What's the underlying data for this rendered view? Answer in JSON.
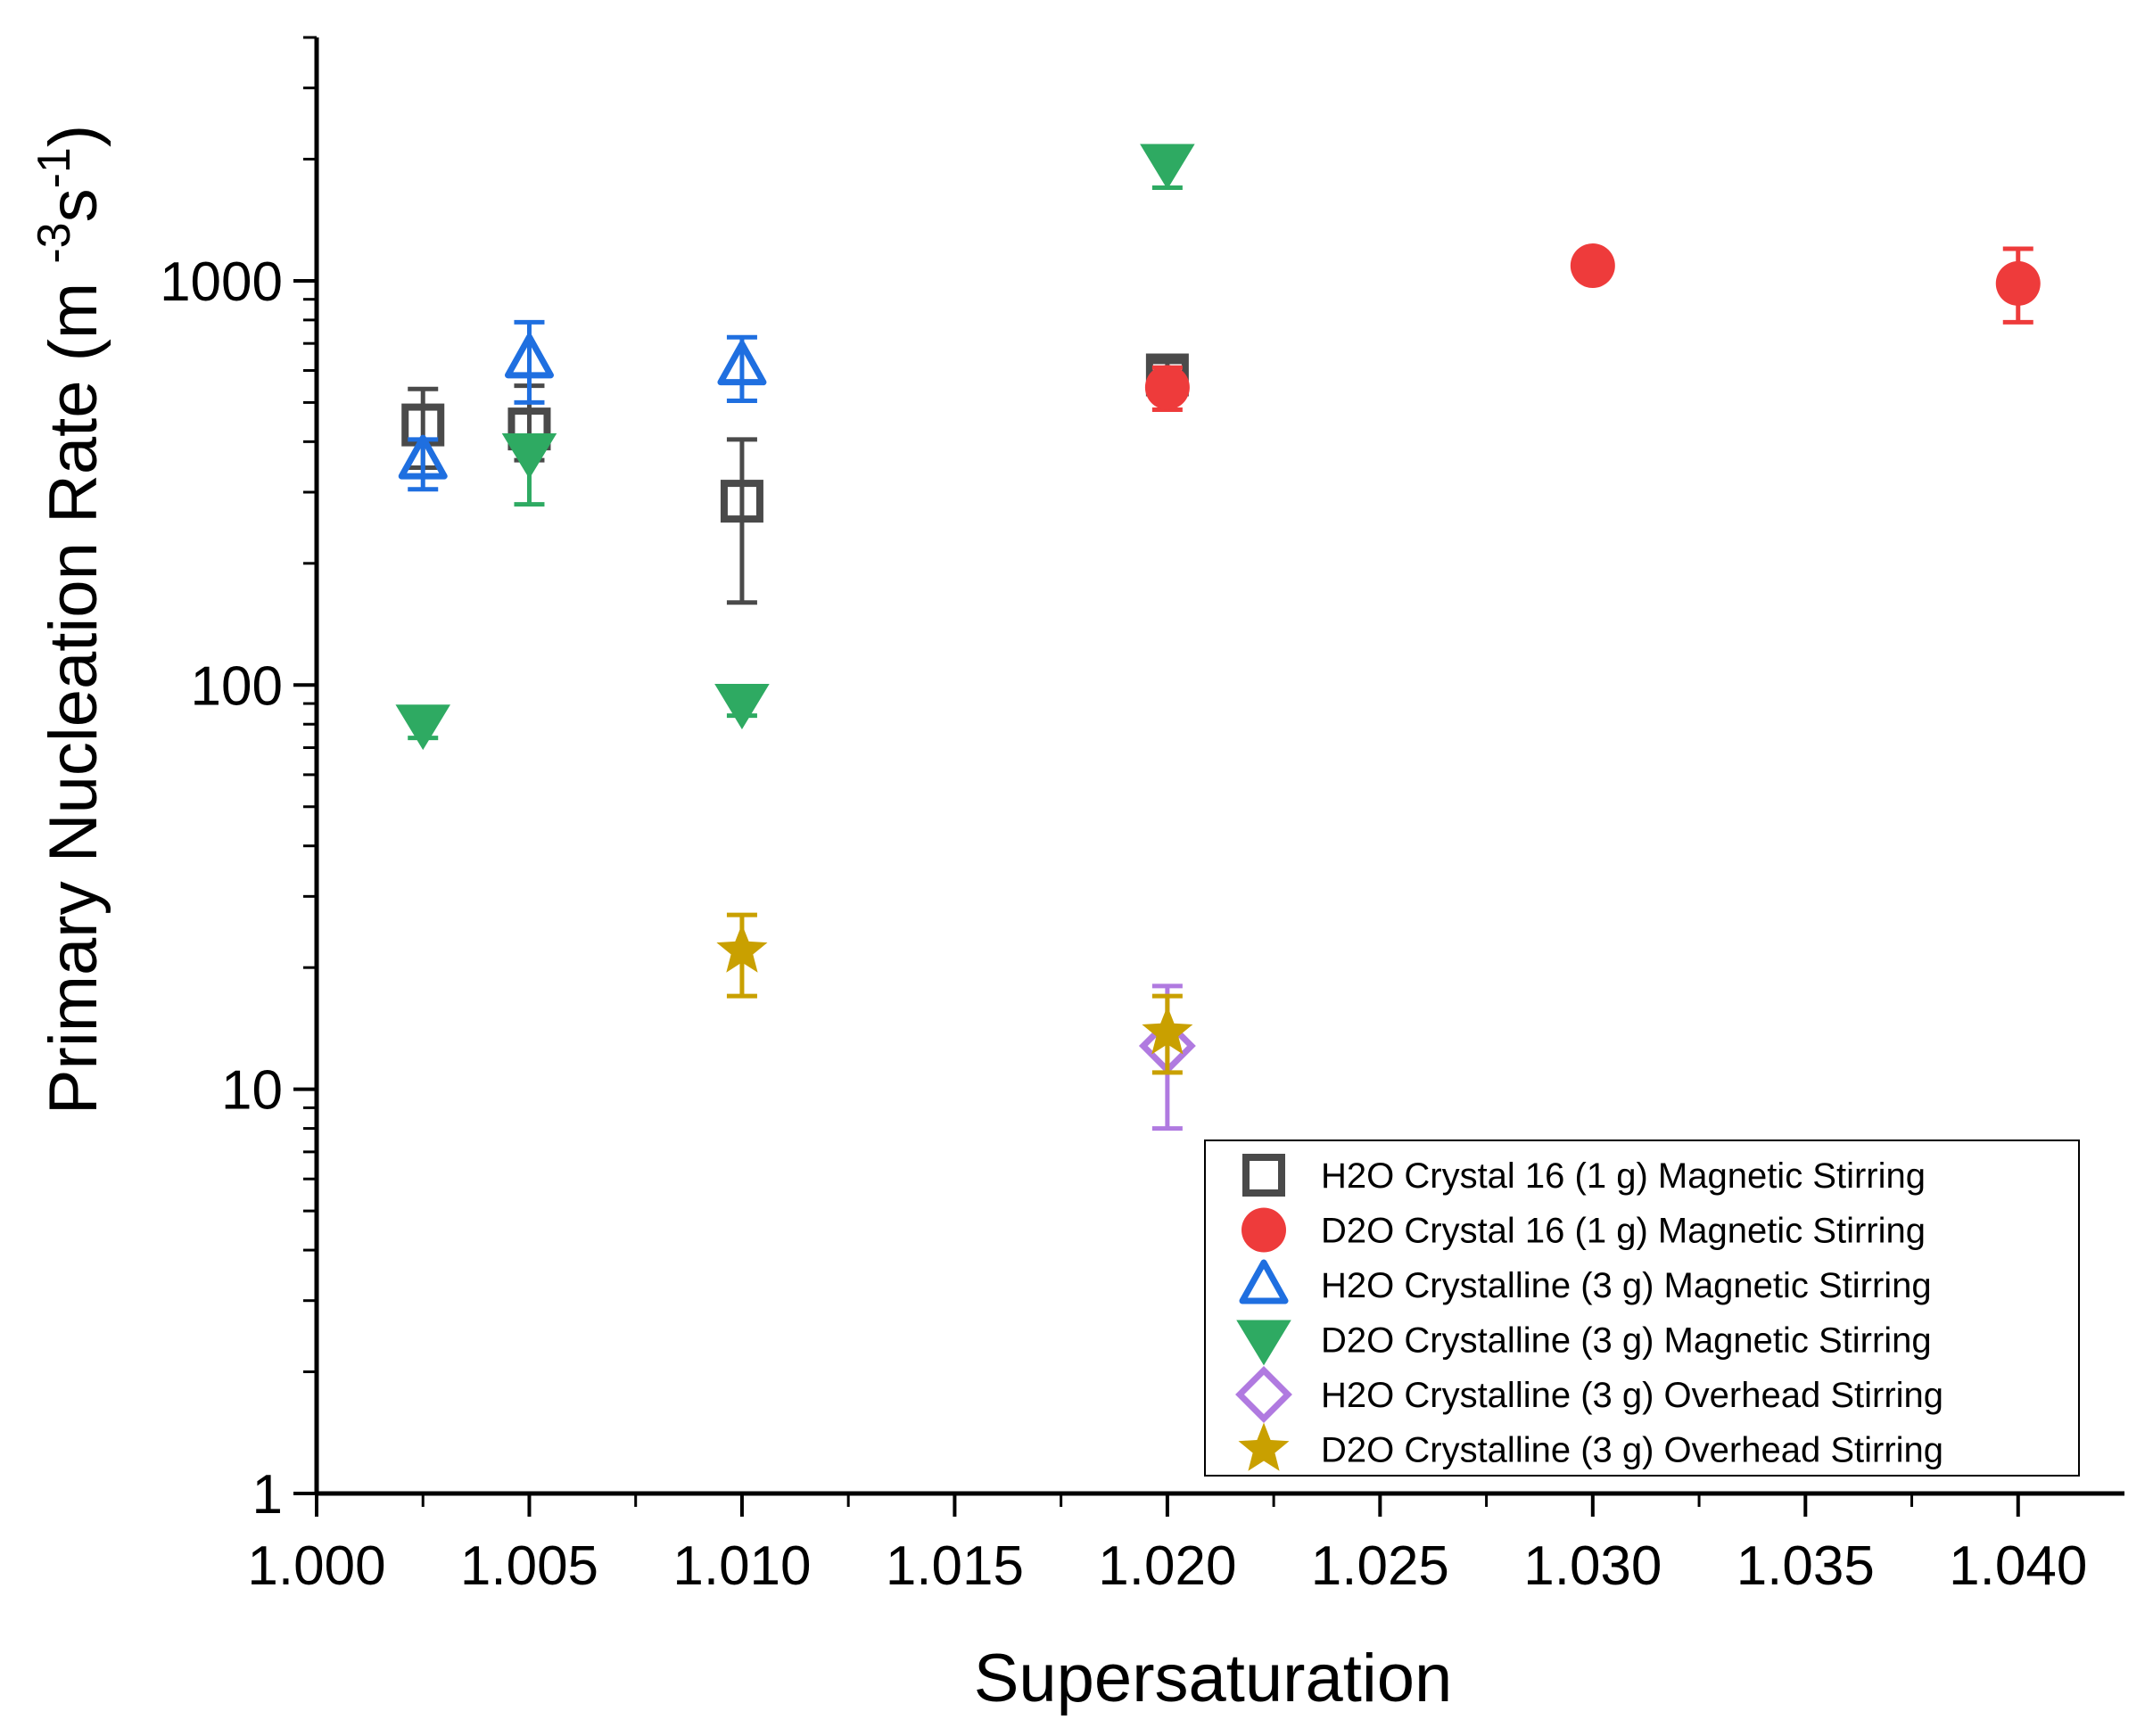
{
  "chart_data": {
    "type": "scatter",
    "title": "",
    "xlabel": "Supersaturation",
    "ylabel": "Primary Nucleation Rate (m ",
    "ylabel_sup1": "-3",
    "ylabel_mid": "s",
    "ylabel_sup2": "-1",
    "ylabel_end": ")",
    "xlim": [
      1.0,
      1.0425
    ],
    "ylim": [
      1,
      4000
    ],
    "yscale": "log",
    "x_ticks": [
      1.0,
      1.005,
      1.01,
      1.015,
      1.02,
      1.025,
      1.03,
      1.035,
      1.04
    ],
    "x_tick_labels": [
      "1.000",
      "1.005",
      "1.010",
      "1.015",
      "1.020",
      "1.025",
      "1.030",
      "1.035",
      "1.040"
    ],
    "y_ticks": [
      1,
      10,
      100,
      1000
    ],
    "y_tick_labels": [
      "1",
      "10",
      "100",
      "1000"
    ],
    "legend_position": "bottom-right",
    "series": [
      {
        "name": "H2O Crystal 16 (1 g) Magnetic Stirring",
        "marker": "square-open",
        "color": "#4a4a4a",
        "points": [
          {
            "x": 1.0025,
            "y": 440,
            "lo": 345,
            "hi": 540
          },
          {
            "x": 1.005,
            "y": 430,
            "lo": 360,
            "hi": 550
          },
          {
            "x": 1.01,
            "y": 285,
            "lo": 160,
            "hi": 405
          },
          {
            "x": 1.02,
            "y": 585,
            "lo": 520,
            "hi": 630
          }
        ]
      },
      {
        "name": "D2O Crystal 16 (1 g) Magnetic Stirring",
        "marker": "circle-filled",
        "color": "#ee3b3b",
        "points": [
          {
            "x": 1.02,
            "y": 545,
            "lo": 480,
            "hi": 610
          },
          {
            "x": 1.03,
            "y": 1090,
            "lo": 1030,
            "hi": 1150
          },
          {
            "x": 1.04,
            "y": 985,
            "lo": 790,
            "hi": 1200
          }
        ]
      },
      {
        "name": "H2O Crystalline (3 g) Magnetic Stirring",
        "marker": "triangle-up-open",
        "color": "#1f6fe0",
        "points": [
          {
            "x": 1.0025,
            "y": 360,
            "lo": 305,
            "hi": 405
          },
          {
            "x": 1.005,
            "y": 640,
            "lo": 500,
            "hi": 790
          },
          {
            "x": 1.01,
            "y": 615,
            "lo": 505,
            "hi": 725
          }
        ]
      },
      {
        "name": "D2O Crystalline (3 g) Magnetic Stirring",
        "marker": "triangle-down-filled",
        "color": "#2eaa62",
        "points": [
          {
            "x": 1.0025,
            "y": 80,
            "lo": 74,
            "hi": 86
          },
          {
            "x": 1.005,
            "y": 375,
            "lo": 280,
            "hi": 390
          },
          {
            "x": 1.01,
            "y": 90,
            "lo": 84,
            "hi": 96
          },
          {
            "x": 1.02,
            "y": 1950,
            "lo": 1700,
            "hi": 2150
          }
        ]
      },
      {
        "name": "H2O Crystalline (3 g) Overhead Stirring",
        "marker": "diamond-open",
        "color": "#b07ae0",
        "points": [
          {
            "x": 1.02,
            "y": 12.8,
            "lo": 8.0,
            "hi": 18.0
          }
        ]
      },
      {
        "name": "D2O Crystalline (3 g) Overhead Stirring",
        "marker": "star-filled",
        "color": "#c9a000",
        "points": [
          {
            "x": 1.01,
            "y": 22,
            "lo": 17,
            "hi": 27
          },
          {
            "x": 1.02,
            "y": 13.8,
            "lo": 11,
            "hi": 17
          }
        ]
      }
    ]
  }
}
